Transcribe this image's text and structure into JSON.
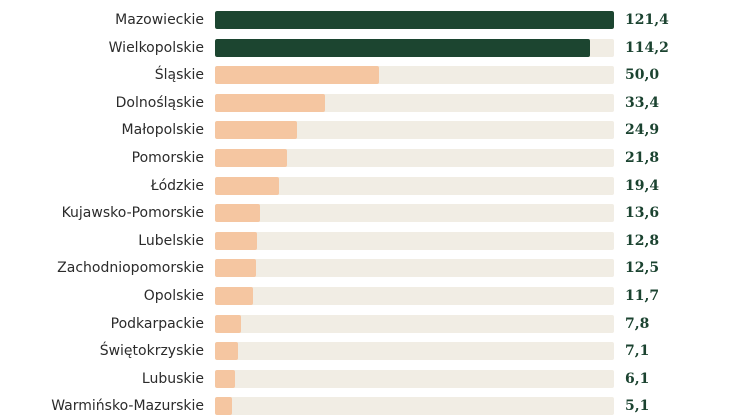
{
  "colors": {
    "highlight": "#1c4530",
    "bar": "#f5c6a1",
    "track": "#f1ede4",
    "value_text": "#1b4330"
  },
  "chart_data": {
    "type": "bar",
    "orientation": "horizontal",
    "title": "",
    "xlabel": "",
    "ylabel": "",
    "xlim": [
      0,
      121.4
    ],
    "grid": false,
    "categories": [
      "Mazowieckie",
      "Wielkopolskie",
      "Śląskie",
      "Dolnośląskie",
      "Małopolskie",
      "Pomorskie",
      "Łódzkie",
      "Kujawsko-Pomorskie",
      "Lubelskie",
      "Zachodniopomorskie",
      "Opolskie",
      "Podkarpackie",
      "Świętokrzyskie",
      "Lubuskie",
      "Warmińsko-Mazurskie"
    ],
    "values": [
      121.4,
      114.2,
      50.0,
      33.4,
      24.9,
      21.8,
      19.4,
      13.6,
      12.8,
      12.5,
      11.7,
      7.8,
      7.1,
      6.1,
      5.1
    ],
    "value_labels": [
      "121,4",
      "114,2",
      "50,0",
      "33,4",
      "24,9",
      "21,8",
      "19,4",
      "13,6",
      "12,8",
      "12,5",
      "11,7",
      "7,8",
      "7,1",
      "6,1",
      "5,1"
    ],
    "highlighted": [
      true,
      true,
      false,
      false,
      false,
      false,
      false,
      false,
      false,
      false,
      false,
      false,
      false,
      false,
      false
    ]
  }
}
